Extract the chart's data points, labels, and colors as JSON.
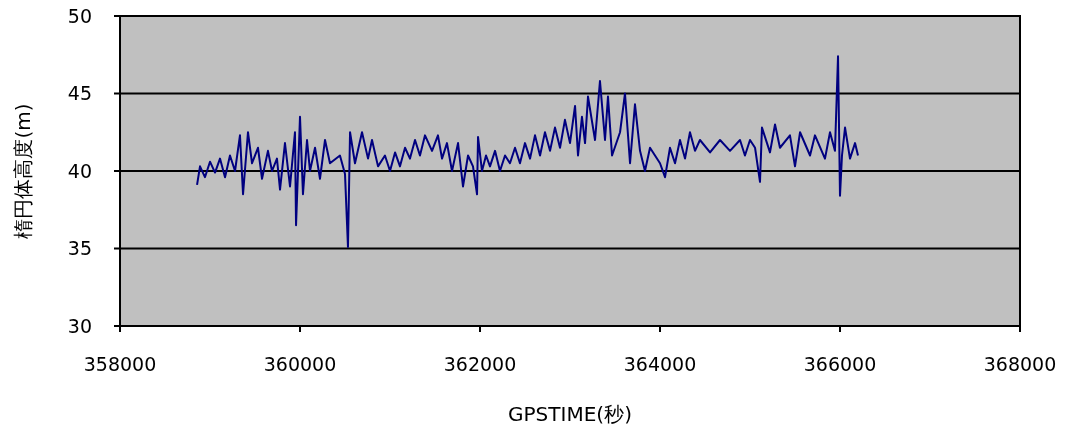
{
  "chart_data": {
    "type": "line",
    "xlabel": "GPSTIME(秒)",
    "ylabel": "楕円体高度(m)",
    "x": [
      358856,
      358889,
      358944,
      359000,
      359056,
      359111,
      359167,
      359222,
      359278,
      359333,
      359367,
      359422,
      359467,
      359533,
      359578,
      359644,
      359689,
      359744,
      359778,
      359833,
      359889,
      359944,
      359956,
      360000,
      360033,
      360078,
      360111,
      360167,
      360222,
      360278,
      360333,
      360444,
      360500,
      360533,
      360556,
      360611,
      360689,
      360756,
      360800,
      360867,
      360944,
      361000,
      361056,
      361111,
      361167,
      361222,
      361278,
      361333,
      361389,
      361467,
      361533,
      361578,
      361633,
      361689,
      361756,
      361811,
      361867,
      361922,
      361967,
      361978,
      362022,
      362067,
      362111,
      362167,
      362222,
      362278,
      362333,
      362389,
      362444,
      362500,
      362556,
      362611,
      362667,
      362722,
      362778,
      362833,
      362889,
      362944,
      363000,
      363056,
      363089,
      363133,
      363167,
      363200,
      363278,
      363333,
      363389,
      363422,
      363467,
      363556,
      363611,
      363667,
      363722,
      363778,
      363833,
      363889,
      364000,
      364056,
      364111,
      364167,
      364222,
      364278,
      364333,
      364389,
      364444,
      364556,
      364667,
      364778,
      364889,
      364944,
      365000,
      365056,
      365111,
      365133,
      365222,
      365278,
      365333,
      365444,
      365500,
      365556,
      365667,
      365722,
      365833,
      365889,
      365944,
      365978,
      366000,
      366022,
      366056,
      366111,
      366167,
      366200
    ],
    "series": [
      {
        "color": "#000080",
        "values": [
          39.1,
          40.3,
          39.6,
          40.6,
          39.9,
          40.8,
          39.6,
          41.0,
          40.0,
          42.3,
          38.5,
          42.5,
          40.5,
          41.5,
          39.5,
          41.3,
          40.0,
          40.8,
          38.8,
          41.8,
          39.0,
          42.5,
          36.5,
          43.5,
          38.5,
          42.0,
          40.0,
          41.5,
          39.5,
          42.0,
          40.5,
          41.0,
          39.8,
          35.1,
          42.5,
          40.5,
          42.5,
          40.8,
          42.0,
          40.3,
          41.0,
          40.0,
          41.2,
          40.3,
          41.5,
          40.8,
          42.0,
          41.0,
          42.3,
          41.3,
          42.3,
          40.8,
          41.8,
          40.0,
          41.8,
          39.0,
          41.0,
          40.3,
          38.5,
          42.2,
          40.0,
          41.0,
          40.3,
          41.3,
          40.0,
          41.0,
          40.5,
          41.5,
          40.5,
          41.8,
          40.8,
          42.3,
          41.0,
          42.5,
          41.3,
          42.8,
          41.5,
          43.3,
          41.8,
          44.2,
          41.0,
          43.5,
          41.8,
          44.8,
          42.0,
          45.8,
          42.0,
          44.8,
          41.0,
          42.5,
          45.0,
          40.5,
          44.3,
          41.3,
          40.0,
          41.5,
          40.5,
          39.6,
          41.5,
          40.5,
          42.0,
          40.8,
          42.5,
          41.3,
          42.0,
          41.2,
          42.0,
          41.3,
          42.0,
          41.0,
          42.0,
          41.5,
          39.3,
          42.8,
          41.2,
          43.0,
          41.5,
          42.3,
          40.3,
          42.5,
          41.0,
          42.3,
          40.8,
          42.5,
          41.3,
          47.4,
          38.4,
          41.0,
          42.8,
          40.8,
          41.8,
          41.0
        ]
      }
    ],
    "xlim": [
      358000,
      368000
    ],
    "xticks": [
      358000,
      360000,
      362000,
      364000,
      366000,
      368000
    ],
    "ylim": [
      30,
      50
    ],
    "yticks": [
      30,
      35,
      40,
      45,
      50
    ],
    "grid": "y",
    "marker": "none",
    "line_style": "solid"
  }
}
